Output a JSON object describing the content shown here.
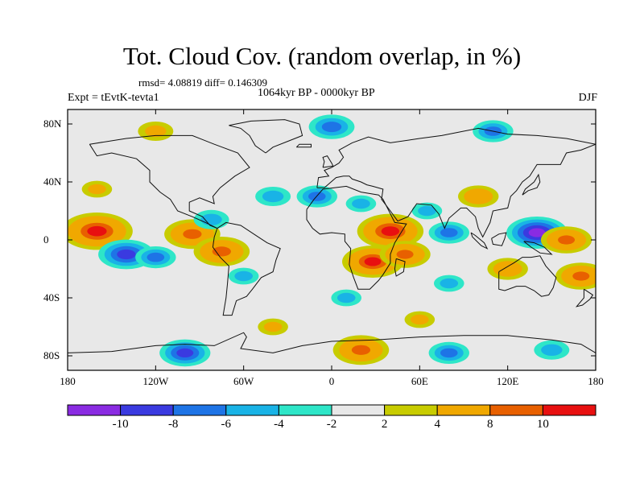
{
  "title": "Tot. Cloud Cov. (random overlap, in %)",
  "stats": "rmsd= 4.08819 diff= 0.146309",
  "period": "1064kyr BP - 0000kyr BP",
  "experiment": "Expt = tEvtK-tevta1",
  "season": "DJF",
  "chart_data": {
    "type": "heatmap",
    "title": "Tot. Cloud Cov. (random overlap, in %)",
    "xlabel": "",
    "ylabel": "",
    "xlim": [
      -180,
      180
    ],
    "ylim": [
      -90,
      90
    ],
    "x_ticks": [
      {
        "value": -180,
        "label": "180"
      },
      {
        "value": -120,
        "label": "120W"
      },
      {
        "value": -60,
        "label": "60W"
      },
      {
        "value": 0,
        "label": "0"
      },
      {
        "value": 60,
        "label": "60E"
      },
      {
        "value": 120,
        "label": "120E"
      },
      {
        "value": 180,
        "label": "180"
      }
    ],
    "y_ticks": [
      {
        "value": 80,
        "label": "80N"
      },
      {
        "value": 40,
        "label": "40N"
      },
      {
        "value": 0,
        "label": "0"
      },
      {
        "value": -40,
        "label": "40S"
      },
      {
        "value": -80,
        "label": "80S"
      }
    ],
    "colorbar": {
      "levels": [
        -10,
        -8,
        -6,
        -4,
        -2,
        2,
        4,
        8,
        10
      ],
      "labels": [
        "-10",
        "-8",
        "-6",
        "-4",
        "-2",
        "2",
        "4",
        "8",
        "10"
      ],
      "colors": [
        "#8a2be2",
        "#3a3ae0",
        "#1e74e6",
        "#19b3e6",
        "#2ee6c8",
        "#e8e8e8",
        "#c8cc00",
        "#f0a800",
        "#e86000",
        "#e81010"
      ]
    },
    "features": [
      {
        "lon": -160,
        "lat": 6,
        "value": 12
      },
      {
        "lon": -140,
        "lat": -10,
        "value": -9
      },
      {
        "lon": -120,
        "lat": -12,
        "value": -6
      },
      {
        "lon": -95,
        "lat": 4,
        "value": 9
      },
      {
        "lon": -75,
        "lat": -8,
        "value": 9
      },
      {
        "lon": -82,
        "lat": 14,
        "value": -5
      },
      {
        "lon": -60,
        "lat": -25,
        "value": -4
      },
      {
        "lon": -40,
        "lat": 30,
        "value": -5
      },
      {
        "lon": -10,
        "lat": 30,
        "value": -6
      },
      {
        "lon": 20,
        "lat": 25,
        "value": -4
      },
      {
        "lon": 40,
        "lat": 6,
        "value": 11
      },
      {
        "lon": 28,
        "lat": -15,
        "value": 10
      },
      {
        "lon": 50,
        "lat": -10,
        "value": 8
      },
      {
        "lon": 65,
        "lat": 20,
        "value": -4
      },
      {
        "lon": 80,
        "lat": 5,
        "value": -6
      },
      {
        "lon": 100,
        "lat": 30,
        "value": 6
      },
      {
        "lon": 140,
        "lat": 5,
        "value": -10
      },
      {
        "lon": 160,
        "lat": 0,
        "value": 8
      },
      {
        "lon": 120,
        "lat": -20,
        "value": 6
      },
      {
        "lon": 170,
        "lat": -25,
        "value": 8
      },
      {
        "lon": -160,
        "lat": 35,
        "value": 4
      },
      {
        "lon": 10,
        "lat": -40,
        "value": -4
      },
      {
        "lon": 80,
        "lat": -30,
        "value": -4
      },
      {
        "lon": -120,
        "lat": 75,
        "value": 5
      },
      {
        "lon": 0,
        "lat": 78,
        "value": -7
      },
      {
        "lon": 110,
        "lat": 75,
        "value": -6
      },
      {
        "lon": -100,
        "lat": -78,
        "value": -8
      },
      {
        "lon": 20,
        "lat": -76,
        "value": 9
      },
      {
        "lon": 80,
        "lat": -78,
        "value": -6
      },
      {
        "lon": 150,
        "lat": -76,
        "value": -5
      },
      {
        "lon": -40,
        "lat": -60,
        "value": 4
      },
      {
        "lon": 60,
        "lat": -55,
        "value": 4
      }
    ]
  }
}
